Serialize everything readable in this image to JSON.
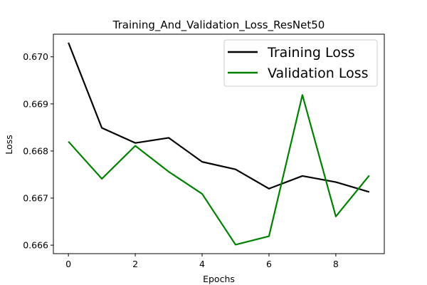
{
  "chart_data": {
    "type": "line",
    "title": "Training_And_Validation_Loss_ResNet50",
    "xlabel": "Epochs",
    "ylabel": "Loss",
    "x": [
      0,
      1,
      2,
      3,
      4,
      5,
      6,
      7,
      8,
      9
    ],
    "xlim": [
      -0.45,
      9.45
    ],
    "ylim": [
      0.66582,
      0.67048
    ],
    "xticks": [
      0,
      2,
      4,
      6,
      8
    ],
    "yticks": [
      0.666,
      0.667,
      0.668,
      0.669,
      0.67
    ],
    "xtick_labels": [
      "0",
      "2",
      "4",
      "6",
      "8"
    ],
    "ytick_labels": [
      "0.666",
      "0.667",
      "0.668",
      "0.669",
      "0.670"
    ],
    "grid": false,
    "legend_position": "top-right",
    "series": [
      {
        "name": "Training Loss",
        "color": "#000000",
        "values": [
          0.6703,
          0.66849,
          0.66817,
          0.66828,
          0.66777,
          0.66761,
          0.6672,
          0.66747,
          0.66734,
          0.66713
        ]
      },
      {
        "name": "Validation Loss",
        "color": "#008000",
        "values": [
          0.6682,
          0.66741,
          0.66811,
          0.66756,
          0.66709,
          0.66601,
          0.66619,
          0.66919,
          0.66661,
          0.66748
        ]
      }
    ]
  }
}
